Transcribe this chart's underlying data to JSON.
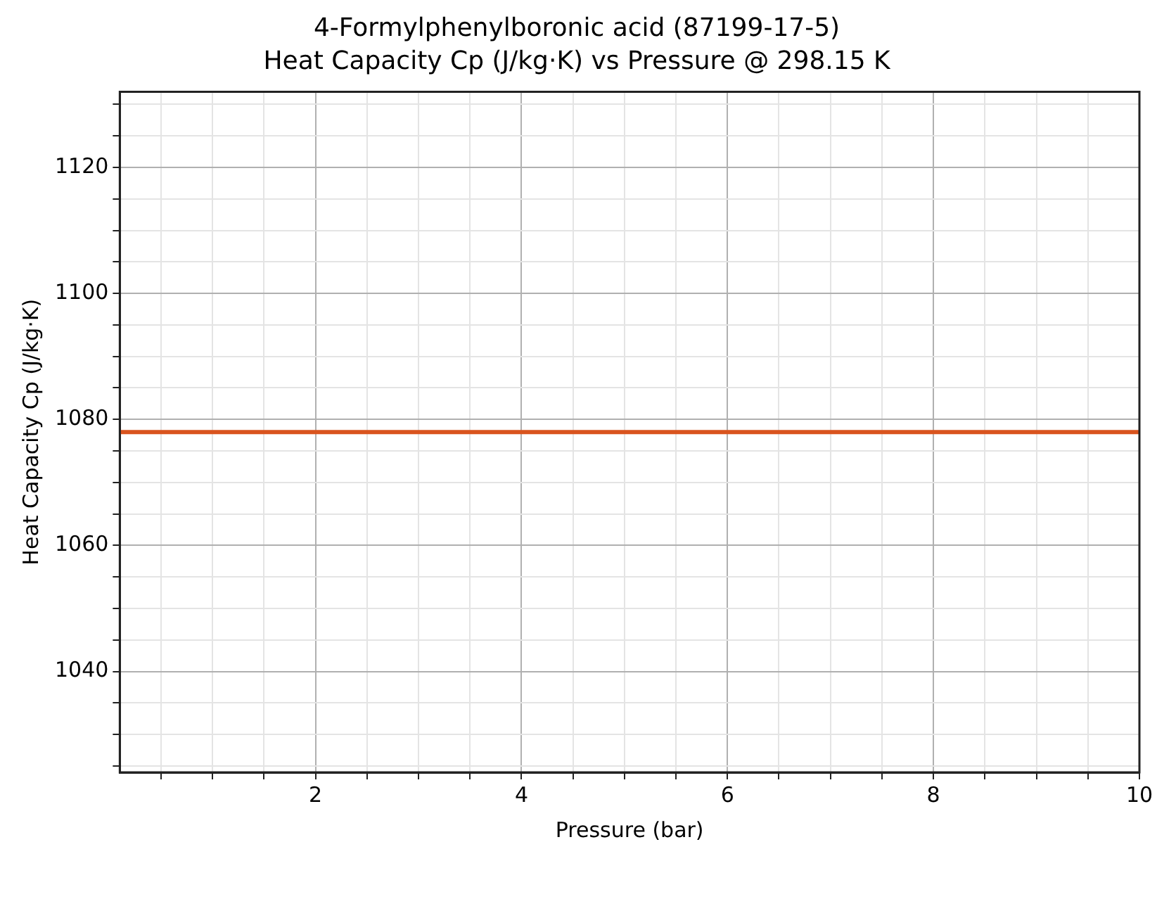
{
  "chart_data": {
    "type": "line",
    "title": "4-Formylphenylboronic acid (87199-17-5)",
    "subtitle": "Heat Capacity Cp (J/kg·K) vs Pressure @ 298.15 K",
    "xlabel": "Pressure (bar)",
    "ylabel": "Heat Capacity Cp (J/kg·K)",
    "x": [
      0.1,
      10
    ],
    "series": [
      {
        "color": "#d9541e",
        "values": [
          1078,
          1078
        ]
      }
    ],
    "xlim": [
      0.1,
      10
    ],
    "ylim": [
      1024,
      1132
    ],
    "xticks": [
      {
        "value": 0.5,
        "label": null
      },
      {
        "value": 1,
        "label": null
      },
      {
        "value": 1.5,
        "label": null
      },
      2,
      {
        "value": 2.5,
        "label": null
      },
      {
        "value": 3,
        "label": null
      },
      {
        "value": 3.5,
        "label": null
      },
      4,
      {
        "value": 4.5,
        "label": null
      },
      {
        "value": 5,
        "label": null
      },
      {
        "value": 5.5,
        "label": null
      },
      6,
      {
        "value": 6.5,
        "label": null
      },
      {
        "value": 7,
        "label": null
      },
      {
        "value": 7.5,
        "label": null
      },
      8,
      {
        "value": 8.5,
        "label": null
      },
      {
        "value": 9,
        "label": null
      },
      {
        "value": 9.5,
        "label": null
      },
      10
    ],
    "yticks": [
      {
        "value": 1025,
        "label": null
      },
      {
        "value": 1030,
        "label": null
      },
      {
        "value": 1035,
        "label": null
      },
      1040,
      {
        "value": 1045,
        "label": null
      },
      {
        "value": 1050,
        "label": null
      },
      {
        "value": 1055,
        "label": null
      },
      1060,
      {
        "value": 1065,
        "label": null
      },
      {
        "value": 1070,
        "label": null
      },
      {
        "value": 1075,
        "label": null
      },
      1080,
      {
        "value": 1085,
        "label": null
      },
      {
        "value": 1090,
        "label": null
      },
      {
        "value": 1095,
        "label": null
      },
      1100,
      {
        "value": 1105,
        "label": null
      },
      {
        "value": 1110,
        "label": null
      },
      {
        "value": 1115,
        "label": null
      },
      1120,
      {
        "value": 1125,
        "label": null
      },
      {
        "value": 1130,
        "label": null
      }
    ],
    "grid": true,
    "legend": false,
    "marker": "none",
    "line_style": "solid"
  }
}
